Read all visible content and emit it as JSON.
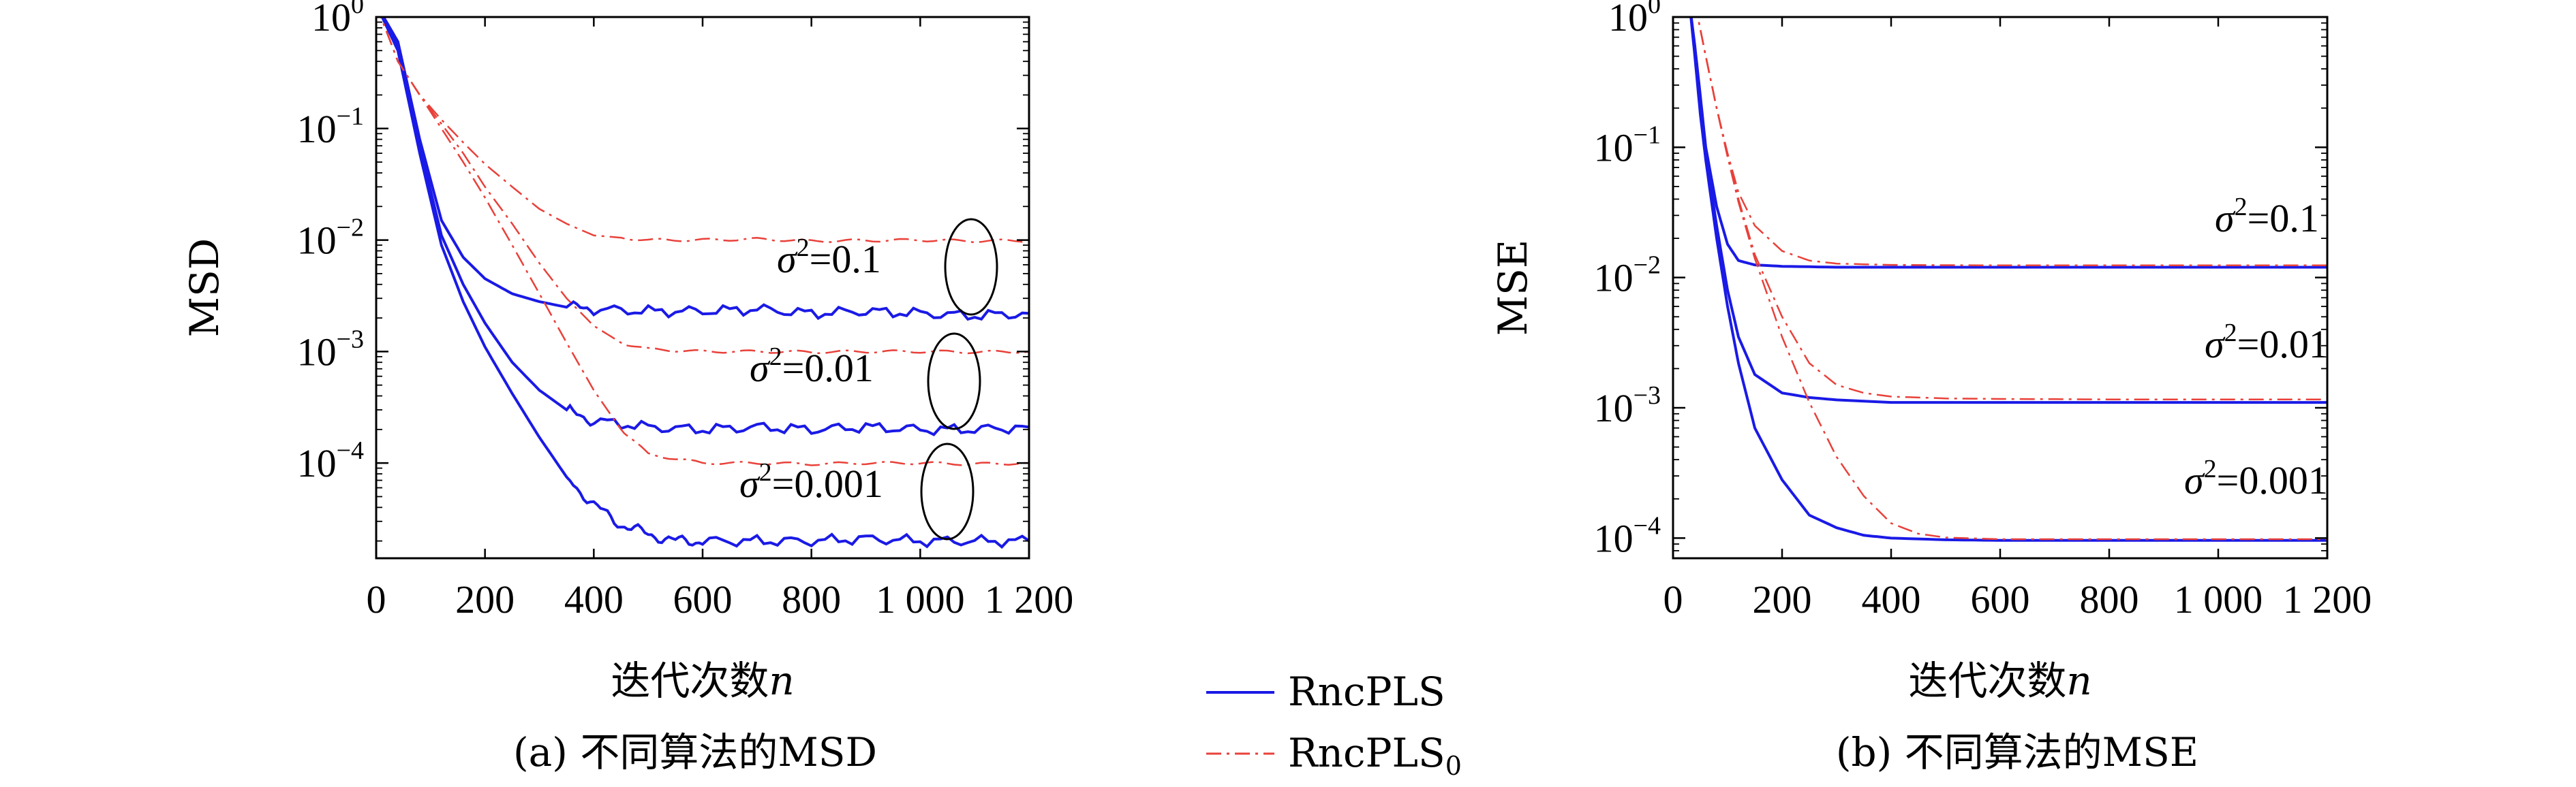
{
  "chart_data": [
    {
      "type": "line",
      "caption": "(a) 不同算法的MSD",
      "xlabel": "迭代次数",
      "xlabel_var": "n",
      "ylabel": "MSD",
      "xlim": [
        0,
        1200
      ],
      "ylim": [
        1.4e-05,
        1
      ],
      "yscale": "log",
      "xticks": [
        0,
        200,
        400,
        600,
        800,
        1000,
        1200
      ],
      "xtick_labels": [
        "0",
        "200",
        "400",
        "600",
        "800",
        "1 000",
        "1 200"
      ],
      "yticks": [
        {
          "value": 1,
          "base": "10",
          "exp": "0"
        },
        {
          "value": 0.1,
          "base": "10",
          "exp": "−1"
        },
        {
          "value": 0.01,
          "base": "10",
          "exp": "−2"
        },
        {
          "value": 0.001,
          "base": "10",
          "exp": "−3"
        },
        {
          "value": 0.0001,
          "base": "10",
          "exp": "−4"
        }
      ],
      "annotations": [
        {
          "sigma_label": "σ",
          "sup": "2",
          "value_text": "=0.1"
        },
        {
          "sigma_label": "σ",
          "sup": "2",
          "value_text": "=0.01"
        },
        {
          "sigma_label": "σ",
          "sup": "2",
          "value_text": "=0.001"
        }
      ],
      "series": [
        {
          "name": "RncPLS",
          "noise": "0.1",
          "x": [
            0,
            40,
            80,
            120,
            160,
            200,
            250,
            300,
            350,
            400,
            500,
            600,
            700,
            800,
            900,
            1000,
            1100,
            1200
          ],
          "y": [
            1.3,
            0.6,
            0.08,
            0.015,
            0.007,
            0.0045,
            0.0033,
            0.0028,
            0.0025,
            0.0024,
            0.0023,
            0.0023,
            0.0024,
            0.0022,
            0.0023,
            0.0022,
            0.0021,
            0.0022
          ]
        },
        {
          "name": "RncPLS",
          "noise": "0.01",
          "x": [
            0,
            40,
            80,
            120,
            160,
            200,
            250,
            300,
            350,
            400,
            500,
            600,
            700,
            800,
            900,
            1000,
            1100,
            1200
          ],
          "y": [
            1.3,
            0.55,
            0.07,
            0.011,
            0.004,
            0.0018,
            0.0008,
            0.00045,
            0.0003,
            0.00024,
            0.00021,
            0.0002,
            0.00021,
            0.0002,
            0.00021,
            0.0002,
            0.0002,
            0.00021
          ]
        },
        {
          "name": "RncPLS",
          "noise": "0.001",
          "x": [
            0,
            40,
            80,
            120,
            160,
            200,
            250,
            300,
            350,
            400,
            450,
            500,
            550,
            600,
            700,
            800,
            900,
            1000,
            1100,
            1200
          ],
          "y": [
            1.3,
            0.5,
            0.06,
            0.009,
            0.0028,
            0.0011,
            0.00042,
            0.00017,
            7.5e-05,
            4.2e-05,
            2.8e-05,
            2.3e-05,
            2e-05,
            2e-05,
            2e-05,
            2e-05,
            2.1e-05,
            2e-05,
            2e-05,
            2e-05
          ]
        },
        {
          "name": "RncPLS₀",
          "noise": "0.1",
          "x": [
            0,
            40,
            80,
            120,
            160,
            200,
            250,
            300,
            350,
            400,
            450,
            500,
            600,
            700,
            800,
            900,
            1000,
            1100,
            1200
          ],
          "y": [
            1.3,
            0.4,
            0.2,
            0.12,
            0.075,
            0.048,
            0.03,
            0.019,
            0.014,
            0.011,
            0.0105,
            0.01,
            0.01,
            0.0102,
            0.0098,
            0.0099,
            0.01,
            0.0098,
            0.0099
          ]
        },
        {
          "name": "RncPLS₀",
          "noise": "0.01",
          "x": [
            0,
            40,
            80,
            120,
            160,
            200,
            250,
            300,
            350,
            400,
            450,
            500,
            600,
            700,
            800,
            900,
            1000,
            1100,
            1200
          ],
          "y": [
            1.3,
            0.4,
            0.2,
            0.11,
            0.06,
            0.03,
            0.014,
            0.0062,
            0.003,
            0.0017,
            0.0012,
            0.00105,
            0.001,
            0.001,
            0.00099,
            0.001,
            0.001,
            0.00099,
            0.001
          ]
        },
        {
          "name": "RncPLS₀",
          "noise": "0.001",
          "x": [
            0,
            40,
            80,
            120,
            160,
            200,
            250,
            300,
            350,
            400,
            450,
            500,
            600,
            700,
            800,
            900,
            1000,
            1100,
            1200
          ],
          "y": [
            1.3,
            0.4,
            0.2,
            0.1,
            0.05,
            0.024,
            0.009,
            0.0033,
            0.0012,
            0.00045,
            0.0002,
            0.00012,
            0.0001,
            0.0001,
            9.8e-05,
            0.0001,
            0.0001,
            9.8e-05,
            0.0001
          ]
        }
      ]
    },
    {
      "type": "line",
      "caption": "(b) 不同算法的MSE",
      "xlabel": "迭代次数",
      "xlabel_var": "n",
      "ylabel": "MSE",
      "xlim": [
        0,
        1200
      ],
      "ylim": [
        7e-05,
        1
      ],
      "yscale": "log",
      "xticks": [
        0,
        200,
        400,
        600,
        800,
        1000,
        1200
      ],
      "xtick_labels": [
        "0",
        "200",
        "400",
        "600",
        "800",
        "1 000",
        "1 200"
      ],
      "yticks": [
        {
          "value": 1,
          "base": "10",
          "exp": "0"
        },
        {
          "value": 0.1,
          "base": "10",
          "exp": "−1"
        },
        {
          "value": 0.01,
          "base": "10",
          "exp": "−2"
        },
        {
          "value": 0.001,
          "base": "10",
          "exp": "−3"
        },
        {
          "value": 0.0001,
          "base": "10",
          "exp": "−4"
        }
      ],
      "annotations": [
        {
          "sigma_label": "σ",
          "sup": "2",
          "value_text": "=0.1"
        },
        {
          "sigma_label": "σ",
          "sup": "2",
          "value_text": "=0.01"
        },
        {
          "sigma_label": "σ",
          "sup": "2",
          "value_text": "=0.001"
        }
      ],
      "series": [
        {
          "name": "RncPLS",
          "noise": "0.1",
          "x": [
            30,
            40,
            50,
            60,
            80,
            100,
            120,
            150,
            200,
            300,
            400,
            600,
            800,
            1000,
            1200
          ],
          "y": [
            1.3,
            0.6,
            0.25,
            0.1,
            0.035,
            0.018,
            0.0135,
            0.0125,
            0.0122,
            0.012,
            0.012,
            0.012,
            0.012,
            0.012,
            0.012
          ]
        },
        {
          "name": "RncPLS",
          "noise": "0.01",
          "x": [
            30,
            40,
            50,
            60,
            80,
            100,
            120,
            150,
            200,
            250,
            300,
            400,
            600,
            800,
            1000,
            1200
          ],
          "y": [
            1.3,
            0.55,
            0.2,
            0.09,
            0.025,
            0.008,
            0.0035,
            0.0018,
            0.0013,
            0.0012,
            0.00115,
            0.0011,
            0.0011,
            0.0011,
            0.0011,
            0.0011
          ]
        },
        {
          "name": "RncPLS",
          "noise": "0.001",
          "x": [
            30,
            40,
            50,
            60,
            80,
            100,
            120,
            150,
            200,
            250,
            300,
            350,
            400,
            500,
            600,
            800,
            1000,
            1200
          ],
          "y": [
            1.3,
            0.5,
            0.18,
            0.08,
            0.02,
            0.006,
            0.0022,
            0.0007,
            0.00028,
            0.00015,
            0.00012,
            0.000105,
            0.0001,
            9.7e-05,
            9.6e-05,
            9.6e-05,
            9.6e-05,
            9.6e-05
          ]
        },
        {
          "name": "RncPLS₀",
          "noise": "0.1",
          "x": [
            40,
            60,
            80,
            100,
            120,
            150,
            200,
            250,
            300,
            400,
            600,
            800,
            1000,
            1200
          ],
          "y": [
            1.3,
            0.5,
            0.2,
            0.09,
            0.045,
            0.025,
            0.016,
            0.0135,
            0.0128,
            0.0125,
            0.0124,
            0.0124,
            0.0124,
            0.0124
          ]
        },
        {
          "name": "RncPLS₀",
          "noise": "0.01",
          "x": [
            40,
            60,
            80,
            100,
            120,
            150,
            200,
            250,
            300,
            350,
            400,
            500,
            600,
            800,
            1000,
            1200
          ],
          "y": [
            1.3,
            0.5,
            0.2,
            0.085,
            0.04,
            0.015,
            0.005,
            0.0022,
            0.0015,
            0.0013,
            0.00122,
            0.00118,
            0.00117,
            0.00116,
            0.00116,
            0.00116
          ]
        },
        {
          "name": "RncPLS₀",
          "noise": "0.001",
          "x": [
            40,
            60,
            80,
            100,
            120,
            150,
            200,
            250,
            300,
            350,
            400,
            450,
            500,
            600,
            800,
            1000,
            1200
          ],
          "y": [
            1.3,
            0.5,
            0.2,
            0.085,
            0.038,
            0.014,
            0.0035,
            0.0011,
            0.00042,
            0.00021,
            0.00013,
            0.000108,
            0.000101,
            9.8e-05,
            9.8e-05,
            9.8e-05,
            9.8e-05
          ]
        }
      ]
    }
  ],
  "legend": {
    "items": [
      {
        "label": "RncPLS",
        "color": "#1a1ae6",
        "style": "solid"
      },
      {
        "label": "RncPLS",
        "subscript": "0",
        "color": "#e8413a",
        "style": "dashdot"
      }
    ]
  },
  "colors": {
    "rncpls": "#1a1ae6",
    "rncpls0": "#e8413a",
    "axis": "#000000"
  }
}
